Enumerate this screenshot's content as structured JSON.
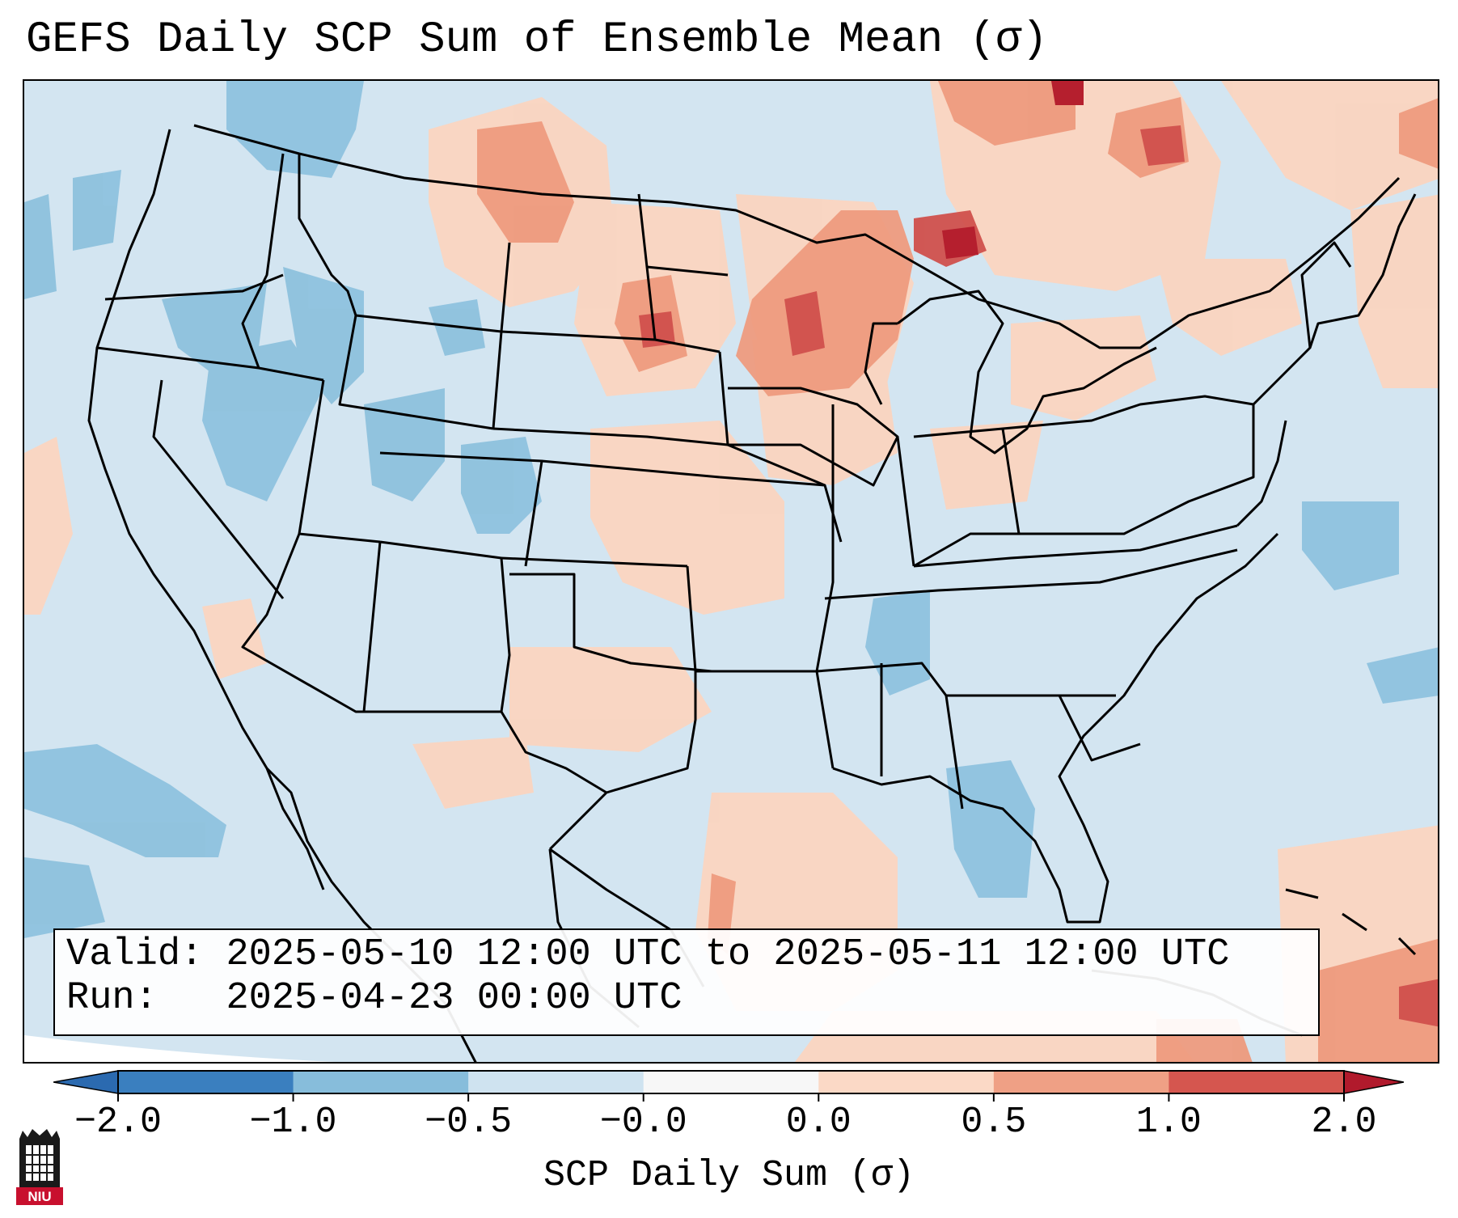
{
  "title": "GEFS Daily SCP Sum of Ensemble Mean (σ)",
  "info": {
    "valid_label": "Valid:",
    "valid_value": "2025-05-10 12:00 UTC to 2025-05-11 12:00 UTC",
    "run_label": "Run:",
    "run_value": "2025-04-23 00:00 UTC"
  },
  "colorbar": {
    "label": "SCP Daily Sum (σ)",
    "ticks": [
      "−2.0",
      "−1.0",
      "−0.5",
      "−0.0",
      "0.0",
      "0.5",
      "1.0",
      "2.0"
    ],
    "colors": [
      "#3a7fbf",
      "#87bddb",
      "#cfe3f0",
      "#f7f7f7",
      "#fbd9c6",
      "#efa085",
      "#d5564f"
    ],
    "extend_low_color": "#2b6ab0",
    "extend_high_color": "#b11a2c"
  },
  "map": {
    "ocean_color": "#d3e5f1",
    "land_base_color": "#d3e5f1",
    "region": "Contiguous United States"
  },
  "logo": {
    "text": "NIU"
  }
}
